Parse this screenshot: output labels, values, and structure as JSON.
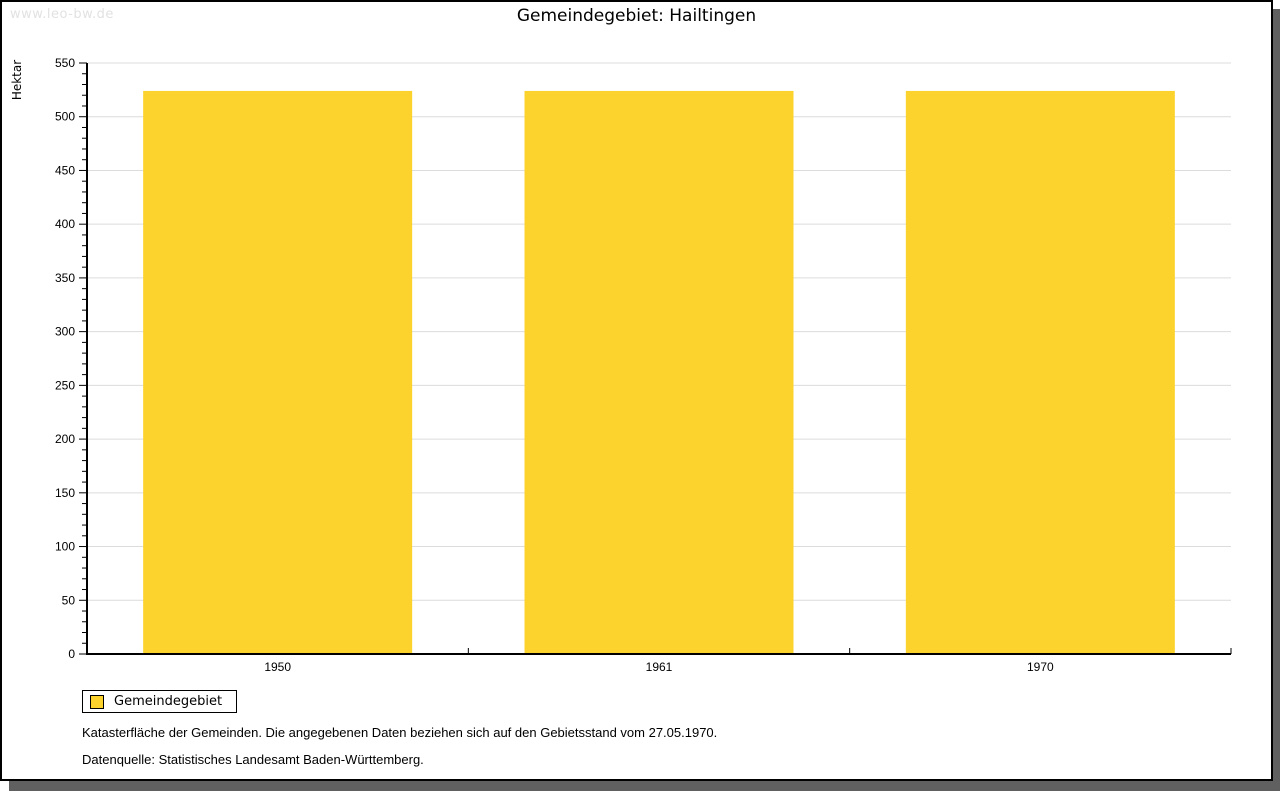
{
  "watermark": "www.leo-bw.de",
  "title": "Gemeindegebiet: Hailtingen",
  "chart_data": {
    "type": "bar",
    "title": "Gemeindegebiet: Hailtingen",
    "categories": [
      "1950",
      "1961",
      "1970"
    ],
    "series": [
      {
        "name": "Gemeindegebiet",
        "values": [
          524,
          524,
          524
        ]
      }
    ],
    "xlabel": "",
    "ylabel": "Hektar",
    "ylim": [
      0,
      550
    ],
    "ytick_major": 50,
    "ytick_minor": 10,
    "grid": "horizontal-major-only",
    "legend_position": "bottom-left",
    "bar_color": "#fcd32d"
  },
  "legend": {
    "items": [
      {
        "label": "Gemeindegebiet",
        "color": "#fcd32d"
      }
    ]
  },
  "footer": {
    "line1": "Katasterfläche der Gemeinden. Die angegebenen Daten beziehen sich auf den Gebietsstand vom 27.05.1970.",
    "line2": "Datenquelle: Statistisches Landesamt Baden-Württemberg."
  },
  "colors": {
    "bar": "#fcd32d",
    "grid": "#dcdcdc",
    "axis": "#000000",
    "shadow": "#606060",
    "watermark": "#e2e2e2",
    "background": "#ffffff"
  }
}
